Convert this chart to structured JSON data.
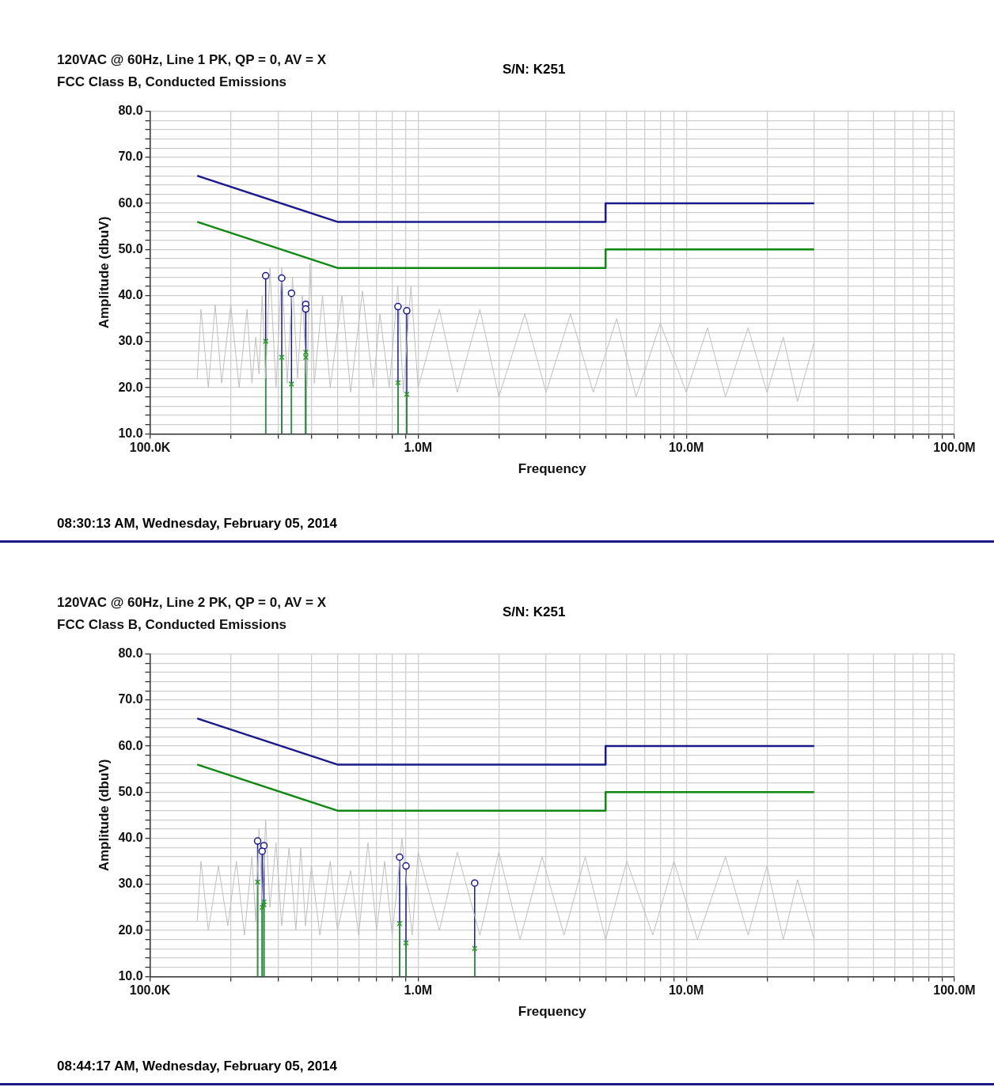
{
  "chart_data": [
    {
      "type": "line",
      "title": "120VAC @ 60Hz,  Line 1 PK, QP = 0, AV = X",
      "subtitle": "FCC  Class B, Conducted Emissions",
      "annotations": [
        "S/N: K251",
        "08:30:13 AM, Wednesday, February 05, 2014"
      ],
      "xlabel": "Frequency",
      "ylabel": "Amplitude (dbuV)",
      "log": "x",
      "grid": true,
      "xlim": [
        100000,
        100000000
      ],
      "ylim": [
        10,
        80
      ],
      "xticks": [
        {
          "value": 100000,
          "label": "100.0K"
        },
        {
          "value": 200000,
          "label": null
        },
        {
          "value": 300000,
          "label": null
        },
        {
          "value": 400000,
          "label": null
        },
        {
          "value": 500000,
          "label": null
        },
        {
          "value": 600000,
          "label": null
        },
        {
          "value": 700000,
          "label": null
        },
        {
          "value": 800000,
          "label": null
        },
        {
          "value": 900000,
          "label": null
        },
        {
          "value": 1000000,
          "label": "1.0M"
        },
        {
          "value": 2000000,
          "label": null
        },
        {
          "value": 3000000,
          "label": null
        },
        {
          "value": 4000000,
          "label": null
        },
        {
          "value": 5000000,
          "label": null
        },
        {
          "value": 6000000,
          "label": null
        },
        {
          "value": 7000000,
          "label": null
        },
        {
          "value": 8000000,
          "label": null
        },
        {
          "value": 9000000,
          "label": null
        },
        {
          "value": 10000000,
          "label": "10.0M"
        },
        {
          "value": 20000000,
          "label": null
        },
        {
          "value": 30000000,
          "label": null
        },
        {
          "value": 40000000,
          "label": null
        },
        {
          "value": 50000000,
          "label": null
        },
        {
          "value": 60000000,
          "label": null
        },
        {
          "value": 70000000,
          "label": null
        },
        {
          "value": 80000000,
          "label": null
        },
        {
          "value": 90000000,
          "label": null
        },
        {
          "value": 100000000,
          "label": "100.0M"
        }
      ],
      "yticks": [
        {
          "value": 10,
          "label": "10.0"
        },
        {
          "value": 12,
          "label": null
        },
        {
          "value": 14,
          "label": null
        },
        {
          "value": 16,
          "label": null
        },
        {
          "value": 18,
          "label": null
        },
        {
          "value": 20,
          "label": "20.0"
        },
        {
          "value": 22,
          "label": null
        },
        {
          "value": 24,
          "label": null
        },
        {
          "value": 26,
          "label": null
        },
        {
          "value": 28,
          "label": null
        },
        {
          "value": 30,
          "label": "30.0"
        },
        {
          "value": 32,
          "label": null
        },
        {
          "value": 34,
          "label": null
        },
        {
          "value": 36,
          "label": null
        },
        {
          "value": 38,
          "label": null
        },
        {
          "value": 40,
          "label": "40.0"
        },
        {
          "value": 42,
          "label": null
        },
        {
          "value": 44,
          "label": null
        },
        {
          "value": 46,
          "label": null
        },
        {
          "value": 48,
          "label": null
        },
        {
          "value": 50,
          "label": "50.0"
        },
        {
          "value": 52,
          "label": null
        },
        {
          "value": 54,
          "label": null
        },
        {
          "value": 56,
          "label": null
        },
        {
          "value": 58,
          "label": null
        },
        {
          "value": 60,
          "label": "60.0"
        },
        {
          "value": 62,
          "label": null
        },
        {
          "value": 64,
          "label": null
        },
        {
          "value": 66,
          "label": null
        },
        {
          "value": 68,
          "label": null
        },
        {
          "value": 70,
          "label": "70.0"
        },
        {
          "value": 72,
          "label": null
        },
        {
          "value": 74,
          "label": null
        },
        {
          "value": 76,
          "label": null
        },
        {
          "value": 78,
          "label": null
        },
        {
          "value": 80,
          "label": "80.0"
        }
      ],
      "series": [
        {
          "color": "#c0c0c0",
          "marker": "none",
          "x": [
            150000,
            155000,
            165000,
            175000,
            185000,
            200000,
            215000,
            230000,
            240000,
            248000,
            255000,
            262000,
            270000,
            280000,
            295000,
            310000,
            325000,
            340000,
            355000,
            370000,
            385000,
            395000,
            410000,
            440000,
            470000,
            520000,
            560000,
            620000,
            680000,
            720000,
            780000,
            840000,
            880000,
            940000,
            1000000,
            1200000,
            1400000,
            1700000,
            2000000,
            2500000,
            3000000,
            3700000,
            4500000,
            5500000,
            6500000,
            8000000,
            10000000,
            12000000,
            14000000,
            17000000,
            20000000,
            23000000,
            26000000,
            30000000
          ],
          "values": [
            22,
            37,
            20,
            38,
            21,
            38,
            20,
            37,
            21,
            31,
            23,
            40,
            22,
            46,
            20,
            46,
            21,
            44,
            22,
            40,
            20,
            47,
            21,
            40,
            20,
            40,
            19,
            41,
            20,
            36,
            20,
            42,
            19,
            42,
            20,
            37,
            19,
            37,
            18,
            36,
            19,
            36,
            19,
            35,
            18,
            34,
            19,
            33,
            18,
            33,
            19,
            31,
            17,
            30
          ]
        },
        {
          "type": "line",
          "color": "#1a1a8c",
          "marker": "none",
          "x": [
            150000,
            500000,
            5000000,
            5000000,
            30000000
          ],
          "values": [
            66,
            56,
            56,
            60,
            60
          ]
        },
        {
          "type": "line",
          "color": "#118811",
          "marker": "none",
          "x": [
            150000,
            500000,
            5000000,
            5000000,
            30000000
          ],
          "values": [
            56,
            46,
            46,
            50,
            50
          ]
        },
        {
          "type": "lollipop",
          "color": "#1a1a8c",
          "marker": "circle",
          "x": [
            270000,
            310000,
            337000,
            381000,
            381000,
            841000,
            907000
          ],
          "values": [
            44.3,
            43.8,
            40.5,
            38.1,
            37.1,
            37.6,
            36.7
          ]
        },
        {
          "type": "lollipop",
          "color": "#2a9a2a",
          "marker": "cross",
          "x": [
            270000,
            310000,
            337000,
            381000,
            381000,
            841000,
            907000
          ],
          "values": [
            30.1,
            26.6,
            20.8,
            27.7,
            26.6,
            21.1,
            18.6
          ]
        }
      ]
    },
    {
      "type": "line",
      "title": "120VAC @ 60Hz,  Line 2 PK, QP = 0, AV = X",
      "subtitle": "FCC  Class B, Conducted Emissions",
      "annotations": [
        "S/N: K251",
        "08:44:17 AM, Wednesday, February 05, 2014"
      ],
      "xlabel": "Frequency",
      "ylabel": "Amplitude (dbuV)",
      "log": "x",
      "grid": true,
      "xlim": [
        100000,
        100000000
      ],
      "ylim": [
        10,
        80
      ],
      "xticks": [
        {
          "value": 100000,
          "label": "100.0K"
        },
        {
          "value": 200000,
          "label": null
        },
        {
          "value": 300000,
          "label": null
        },
        {
          "value": 400000,
          "label": null
        },
        {
          "value": 500000,
          "label": null
        },
        {
          "value": 600000,
          "label": null
        },
        {
          "value": 700000,
          "label": null
        },
        {
          "value": 800000,
          "label": null
        },
        {
          "value": 900000,
          "label": null
        },
        {
          "value": 1000000,
          "label": "1.0M"
        },
        {
          "value": 2000000,
          "label": null
        },
        {
          "value": 3000000,
          "label": null
        },
        {
          "value": 4000000,
          "label": null
        },
        {
          "value": 5000000,
          "label": null
        },
        {
          "value": 6000000,
          "label": null
        },
        {
          "value": 7000000,
          "label": null
        },
        {
          "value": 8000000,
          "label": null
        },
        {
          "value": 9000000,
          "label": null
        },
        {
          "value": 10000000,
          "label": "10.0M"
        },
        {
          "value": 20000000,
          "label": null
        },
        {
          "value": 30000000,
          "label": null
        },
        {
          "value": 40000000,
          "label": null
        },
        {
          "value": 50000000,
          "label": null
        },
        {
          "value": 60000000,
          "label": null
        },
        {
          "value": 70000000,
          "label": null
        },
        {
          "value": 80000000,
          "label": null
        },
        {
          "value": 90000000,
          "label": null
        },
        {
          "value": 100000000,
          "label": "100.0M"
        }
      ],
      "yticks": [
        {
          "value": 10,
          "label": "10.0"
        },
        {
          "value": 12,
          "label": null
        },
        {
          "value": 14,
          "label": null
        },
        {
          "value": 16,
          "label": null
        },
        {
          "value": 18,
          "label": null
        },
        {
          "value": 20,
          "label": "20.0"
        },
        {
          "value": 22,
          "label": null
        },
        {
          "value": 24,
          "label": null
        },
        {
          "value": 26,
          "label": null
        },
        {
          "value": 28,
          "label": null
        },
        {
          "value": 30,
          "label": "30.0"
        },
        {
          "value": 32,
          "label": null
        },
        {
          "value": 34,
          "label": null
        },
        {
          "value": 36,
          "label": null
        },
        {
          "value": 38,
          "label": null
        },
        {
          "value": 40,
          "label": "40.0"
        },
        {
          "value": 42,
          "label": null
        },
        {
          "value": 44,
          "label": null
        },
        {
          "value": 46,
          "label": null
        },
        {
          "value": 48,
          "label": null
        },
        {
          "value": 50,
          "label": "50.0"
        },
        {
          "value": 52,
          "label": null
        },
        {
          "value": 54,
          "label": null
        },
        {
          "value": 56,
          "label": null
        },
        {
          "value": 58,
          "label": null
        },
        {
          "value": 60,
          "label": "60.0"
        },
        {
          "value": 62,
          "label": null
        },
        {
          "value": 64,
          "label": null
        },
        {
          "value": 66,
          "label": null
        },
        {
          "value": 68,
          "label": null
        },
        {
          "value": 70,
          "label": "70.0"
        },
        {
          "value": 72,
          "label": null
        },
        {
          "value": 74,
          "label": null
        },
        {
          "value": 76,
          "label": null
        },
        {
          "value": 78,
          "label": null
        },
        {
          "value": 80,
          "label": "80.0"
        }
      ],
      "series": [
        {
          "color": "#c0c0c0",
          "marker": "none",
          "x": [
            150000,
            155000,
            165000,
            180000,
            195000,
            210000,
            225000,
            240000,
            248000,
            255000,
            262000,
            270000,
            280000,
            295000,
            310000,
            330000,
            350000,
            365000,
            380000,
            400000,
            430000,
            470000,
            500000,
            560000,
            600000,
            650000,
            700000,
            750000,
            800000,
            870000,
            950000,
            1000000,
            1200000,
            1400000,
            1700000,
            2000000,
            2400000,
            2900000,
            3500000,
            4200000,
            5000000,
            6000000,
            7500000,
            9000000,
            11000000,
            14000000,
            17000000,
            20000000,
            23000000,
            26000000,
            30000000
          ],
          "values": [
            22,
            35,
            20,
            34,
            21,
            35,
            19,
            36,
            22,
            42,
            26,
            44,
            25,
            39,
            21,
            38,
            20,
            38,
            21,
            34,
            19,
            35,
            20,
            33,
            19,
            39,
            20,
            35,
            19,
            40,
            19,
            37,
            20,
            37,
            19,
            37,
            18,
            36,
            19,
            36,
            18,
            35,
            19,
            35,
            18,
            36,
            19,
            34,
            18,
            31,
            18
          ]
        },
        {
          "type": "line",
          "color": "#1a1a8c",
          "marker": "none",
          "x": [
            150000,
            500000,
            5000000,
            5000000,
            30000000
          ],
          "values": [
            66,
            56,
            56,
            60,
            60
          ]
        },
        {
          "type": "line",
          "color": "#118811",
          "marker": "none",
          "x": [
            150000,
            500000,
            5000000,
            5000000,
            30000000
          ],
          "values": [
            56,
            46,
            46,
            50,
            50
          ]
        },
        {
          "type": "lollipop",
          "color": "#1a1a8c",
          "marker": "circle",
          "x": [
            252000,
            266000,
            262000,
            853000,
            901000,
            1625000
          ],
          "values": [
            39.4,
            38.4,
            37.2,
            35.9,
            34.0,
            30.3
          ]
        },
        {
          "type": "lollipop",
          "color": "#2a9a2a",
          "marker": "cross",
          "x": [
            252000,
            266000,
            266000,
            262000,
            853000,
            901000,
            1625000
          ],
          "values": [
            30.5,
            26.2,
            25.6,
            25.0,
            21.5,
            17.3,
            16.1
          ]
        }
      ]
    }
  ]
}
